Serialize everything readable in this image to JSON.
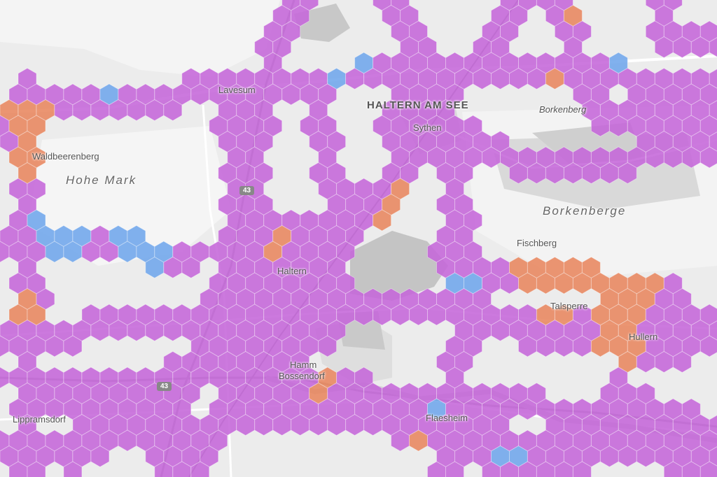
{
  "map": {
    "labels": {
      "haltern_am_see": "HALTERN AM SEE",
      "sythen": "Sythen",
      "lavesum": "Lavesum",
      "borkenberg": "Borkenberg",
      "waldbeerenberg": "Waldbeerenberg",
      "hohe_mark": "Hohe Mark",
      "borkenberge": "Borkenberge",
      "fischberg": "Fischberg",
      "haltern": "Haltern",
      "hamm": "Hamm",
      "bossendorf": "Bossendorf",
      "lippramsdorf": "Lippramsdorf",
      "flaesheim": "Flaesheim",
      "hullern": "Hullern",
      "talsperre": "Talsperre"
    },
    "road_shields": [
      "43",
      "43"
    ],
    "colors": {
      "hex_purple": "#c566d9",
      "hex_orange": "#e8865e",
      "hex_blue": "#6fa6ec",
      "hex_teal": "#4fc6b8",
      "background": "#ececec",
      "forest": "#d2d2d2",
      "water": "#c6c6c6"
    }
  }
}
